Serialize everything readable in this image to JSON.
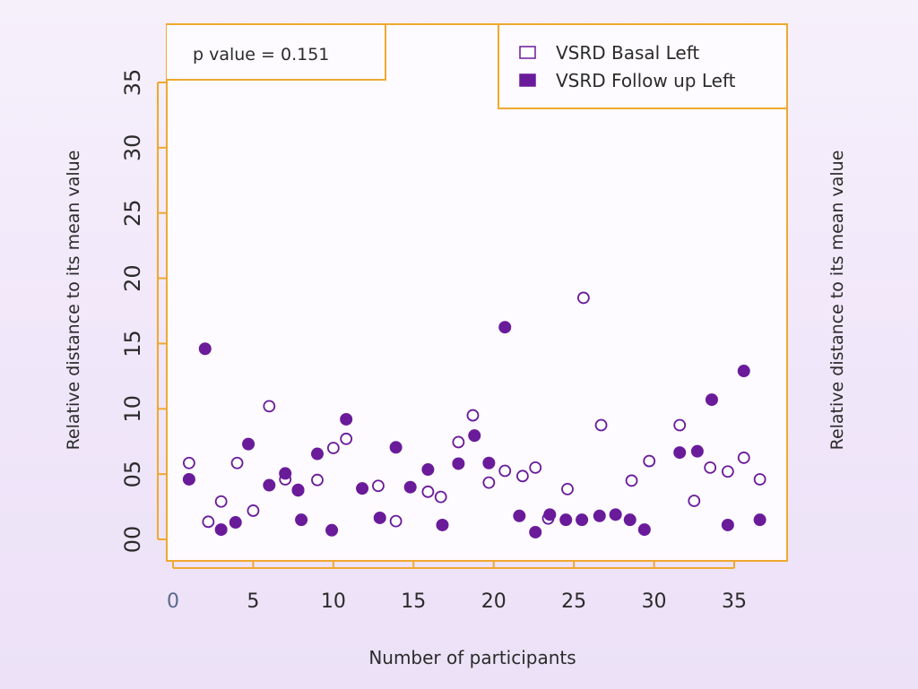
{
  "chart_data": {
    "type": "scatter",
    "annotation": "p value = 0.151",
    "xlabel": "Number of participants",
    "ylabel": "Relative distance to its mean value",
    "ylabel_right": "Relative distance to its mean value",
    "xlim": [
      0,
      38
    ],
    "ylim": [
      0,
      35
    ],
    "x_ticks": [
      0,
      5,
      10,
      15,
      20,
      25,
      30,
      35
    ],
    "x_tick_labels": [
      "0",
      "5",
      "10",
      "15",
      "20",
      "25",
      "30",
      "35"
    ],
    "y_ticks": [
      0,
      5,
      10,
      15,
      20,
      25,
      30,
      35
    ],
    "y_tick_labels": [
      "00",
      "05",
      "10",
      "15",
      "20",
      "25",
      "30",
      "35"
    ],
    "legend_position": "top-right",
    "colors": {
      "marker": "#6a1b9a",
      "frame": "#f0a830",
      "text": "#2b2b2b"
    },
    "series": [
      {
        "name": "VSRD Basal Left",
        "marker": "open-circle",
        "points": [
          [
            1,
            5.85
          ],
          [
            2.2,
            1.35
          ],
          [
            3,
            2.9
          ],
          [
            4,
            5.85
          ],
          [
            5,
            2.2
          ],
          [
            6,
            10.2
          ],
          [
            7,
            4.6
          ],
          [
            7.8,
            3.8
          ],
          [
            9,
            4.55
          ],
          [
            10,
            7.0
          ],
          [
            10.8,
            7.7
          ],
          [
            12.8,
            4.1
          ],
          [
            13.9,
            1.4
          ],
          [
            15.9,
            3.65
          ],
          [
            16.7,
            3.25
          ],
          [
            17.8,
            7.45
          ],
          [
            18.7,
            9.5
          ],
          [
            19.7,
            4.35
          ],
          [
            20.7,
            5.25
          ],
          [
            21.8,
            4.85
          ],
          [
            22.6,
            5.5
          ],
          [
            23.4,
            1.6
          ],
          [
            24.6,
            3.85
          ],
          [
            25.6,
            18.5
          ],
          [
            26.7,
            8.75
          ],
          [
            28.6,
            4.5
          ],
          [
            29.7,
            6.0
          ],
          [
            31.6,
            8.75
          ],
          [
            32.5,
            2.95
          ],
          [
            33.5,
            5.5
          ],
          [
            34.6,
            5.2
          ],
          [
            35.6,
            6.25
          ],
          [
            36.6,
            4.6
          ]
        ]
      },
      {
        "name": "VSRD Follow up Left",
        "marker": "filled-circle",
        "points": [
          [
            1,
            4.6
          ],
          [
            2,
            14.6
          ],
          [
            3,
            0.75
          ],
          [
            3.9,
            1.3
          ],
          [
            4.7,
            7.3
          ],
          [
            6,
            4.15
          ],
          [
            7,
            5.05
          ],
          [
            7.8,
            3.75
          ],
          [
            8,
            1.5
          ],
          [
            9,
            6.55
          ],
          [
            9.9,
            0.7
          ],
          [
            10.8,
            9.2
          ],
          [
            11.8,
            3.9
          ],
          [
            12.9,
            1.65
          ],
          [
            13.9,
            7.05
          ],
          [
            14.8,
            4.0
          ],
          [
            15.9,
            5.35
          ],
          [
            16.8,
            1.1
          ],
          [
            17.8,
            5.8
          ],
          [
            18.8,
            7.95
          ],
          [
            19.7,
            5.85
          ],
          [
            20.7,
            16.25
          ],
          [
            21.6,
            1.8
          ],
          [
            22.6,
            0.55
          ],
          [
            23.5,
            1.9
          ],
          [
            24.5,
            1.5
          ],
          [
            25.5,
            1.5
          ],
          [
            26.6,
            1.8
          ],
          [
            27.6,
            1.9
          ],
          [
            28.5,
            1.5
          ],
          [
            29.4,
            0.75
          ],
          [
            31.6,
            6.65
          ],
          [
            32.7,
            6.75
          ],
          [
            33.6,
            10.7
          ],
          [
            34.6,
            1.1
          ],
          [
            35.6,
            12.9
          ],
          [
            36.6,
            1.5
          ]
        ]
      }
    ]
  }
}
